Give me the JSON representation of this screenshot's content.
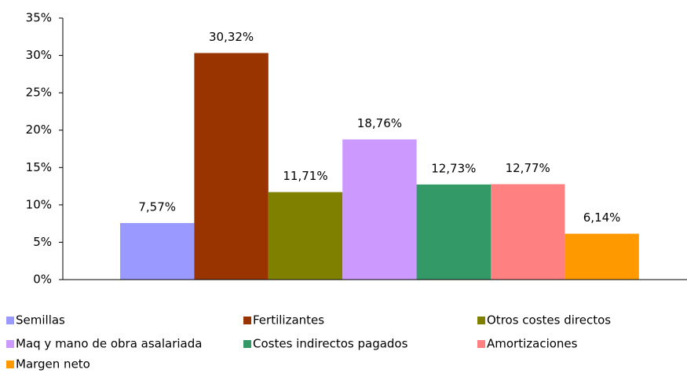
{
  "chart_data": {
    "type": "bar",
    "series": [
      {
        "name": "Semillas",
        "color": "#9999ff",
        "values": [
          7.57
        ],
        "value_labels": [
          "7,57%"
        ]
      },
      {
        "name": "Fertilizantes",
        "color": "#993300",
        "values": [
          30.32
        ],
        "value_labels": [
          "30,32%"
        ]
      },
      {
        "name": "Otros costes directos",
        "color": "#808000",
        "values": [
          11.71
        ],
        "value_labels": [
          "11,71%"
        ]
      },
      {
        "name": "Maq y mano de obra asalariada",
        "color": "#cc99ff",
        "values": [
          18.76
        ],
        "value_labels": [
          "18,76%"
        ]
      },
      {
        "name": "Costes indirectos pagados",
        "color": "#339966",
        "values": [
          12.73
        ],
        "value_labels": [
          "12,73%"
        ]
      },
      {
        "name": "Amortizaciones",
        "color": "#ff8080",
        "values": [
          12.77
        ],
        "value_labels": [
          "12,77%"
        ]
      },
      {
        "name": "Margen neto",
        "color": "#ff9900",
        "values": [
          6.14
        ],
        "value_labels": [
          "6,14%"
        ]
      }
    ],
    "ylim": [
      0,
      35
    ],
    "yticks": [
      {
        "value": 0,
        "label": "0%"
      },
      {
        "value": 5,
        "label": "5%"
      },
      {
        "value": 10,
        "label": "10%"
      },
      {
        "value": 15,
        "label": "15%"
      },
      {
        "value": 20,
        "label": "20%"
      },
      {
        "value": 25,
        "label": "25%"
      },
      {
        "value": 30,
        "label": "30%"
      },
      {
        "value": 35,
        "label": "35%"
      }
    ],
    "legend": "bottom"
  }
}
